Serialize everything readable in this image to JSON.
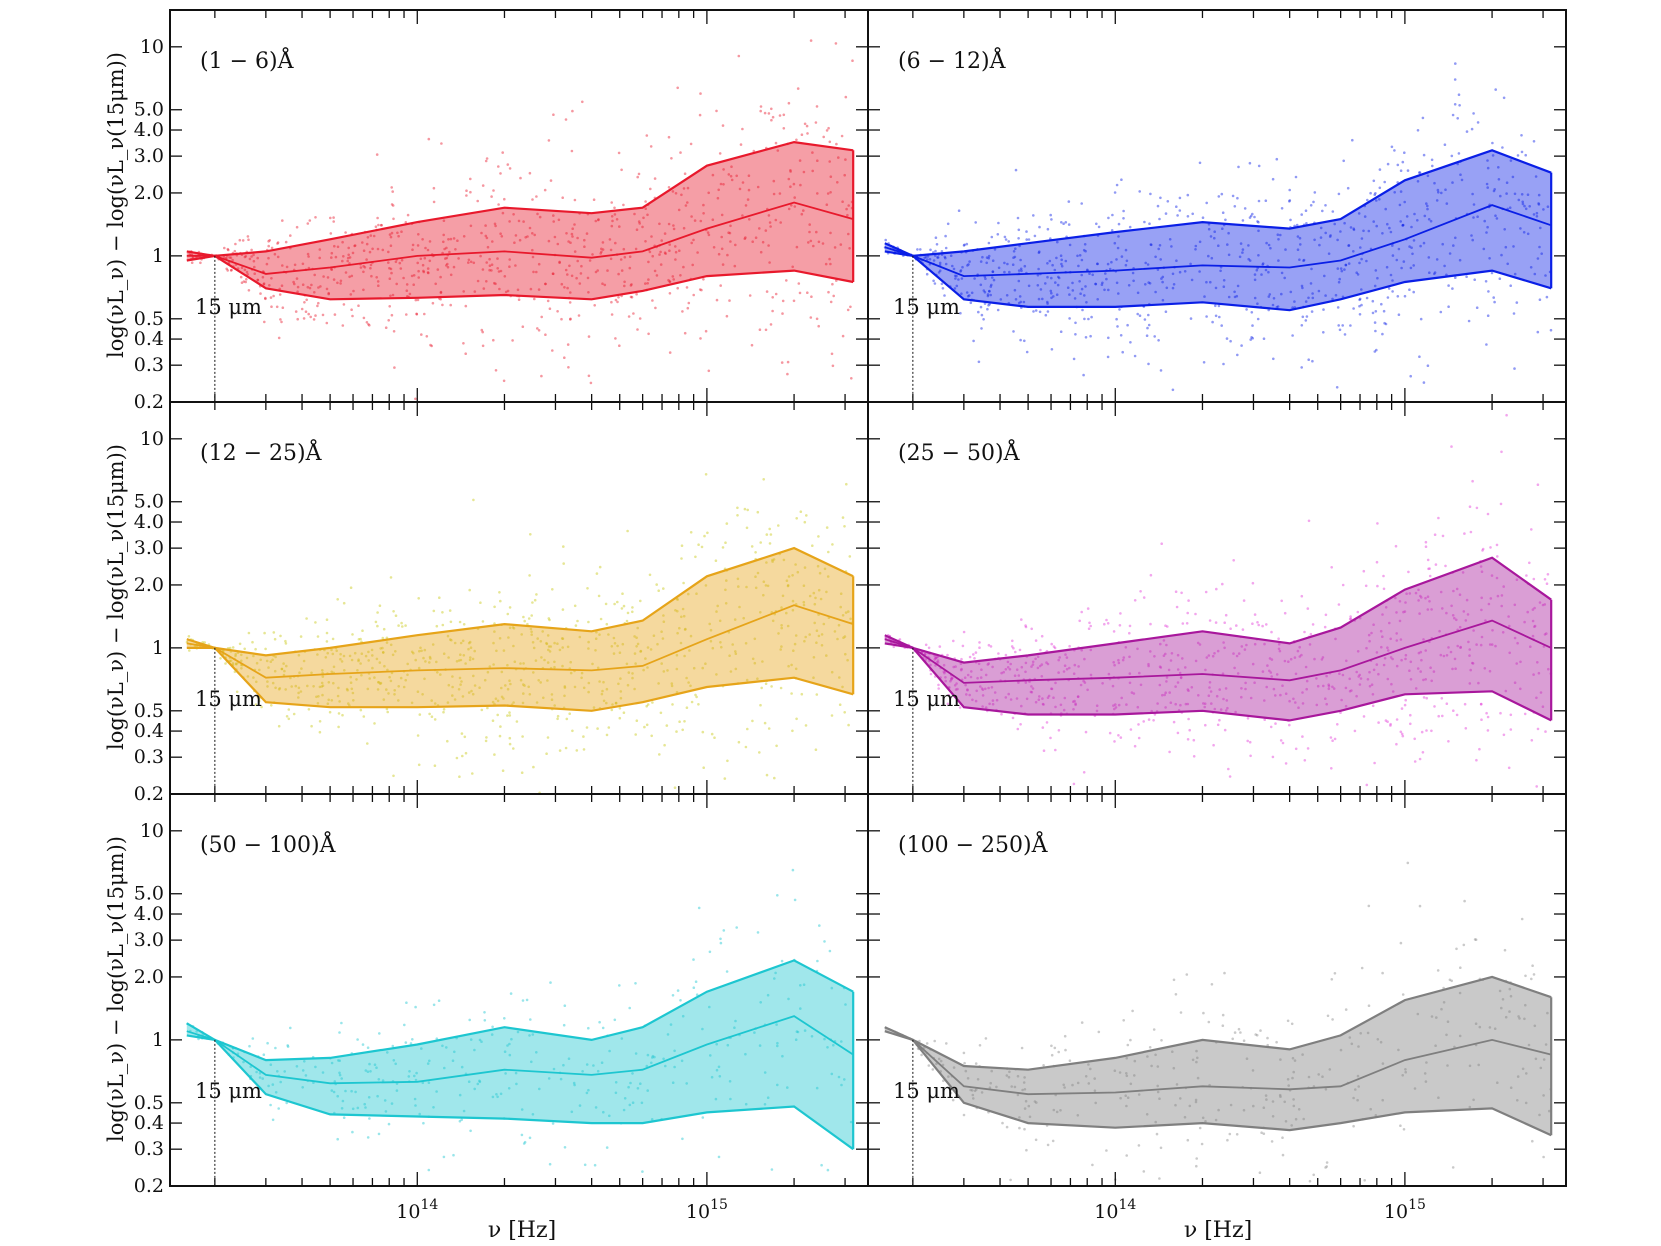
{
  "figure": {
    "ylabel": "log(νL_ν) − log(νL_ν(15μm))",
    "xlabel": "ν [Hz]",
    "reference_label": "15 μm",
    "x_tick_labels": [
      "10^14",
      "10^15"
    ],
    "y_tick_labels": [
      "10",
      "5.0",
      "4.0",
      "3.0",
      "2.0",
      "1",
      "0.5",
      "0.4",
      "0.3",
      "0.2"
    ]
  },
  "chart_data": [
    {
      "type": "area",
      "title": "(1 − 6)Å",
      "color": "#e8192c",
      "xscale": "log",
      "yscale": "log",
      "xlim": [
        14000000000000.0,
        3600000000000000.0
      ],
      "ylim": [
        0.2,
        15
      ],
      "reference_x": 20000000000000.0,
      "x": [
        16000000000000.0,
        20000000000000.0,
        30000000000000.0,
        50000000000000.0,
        100000000000000.0,
        200000000000000.0,
        400000000000000.0,
        600000000000000.0,
        1000000000000000.0,
        2000000000000000.0,
        3200000000000000.0
      ],
      "series": [
        {
          "name": "upper",
          "values": [
            1.05,
            1.0,
            1.05,
            1.2,
            1.45,
            1.7,
            1.6,
            1.7,
            2.7,
            3.5,
            3.2
          ]
        },
        {
          "name": "median",
          "values": [
            1.0,
            1.0,
            0.82,
            0.88,
            1.0,
            1.05,
            0.98,
            1.05,
            1.35,
            1.8,
            1.5
          ]
        },
        {
          "name": "lower",
          "values": [
            0.95,
            1.0,
            0.7,
            0.62,
            0.63,
            0.65,
            0.62,
            0.68,
            0.8,
            0.85,
            0.75
          ]
        }
      ]
    },
    {
      "type": "area",
      "title": "(6 − 12)Å",
      "color": "#0a1fe6",
      "xscale": "log",
      "yscale": "log",
      "xlim": [
        14000000000000.0,
        3600000000000000.0
      ],
      "ylim": [
        0.2,
        15
      ],
      "reference_x": 20000000000000.0,
      "x": [
        16000000000000.0,
        20000000000000.0,
        30000000000000.0,
        50000000000000.0,
        100000000000000.0,
        200000000000000.0,
        400000000000000.0,
        600000000000000.0,
        1000000000000000.0,
        2000000000000000.0,
        3200000000000000.0
      ],
      "series": [
        {
          "name": "upper",
          "values": [
            1.15,
            1.0,
            1.05,
            1.15,
            1.3,
            1.45,
            1.35,
            1.5,
            2.3,
            3.2,
            2.5
          ]
        },
        {
          "name": "median",
          "values": [
            1.1,
            1.0,
            0.8,
            0.82,
            0.85,
            0.9,
            0.88,
            0.95,
            1.2,
            1.75,
            1.4
          ]
        },
        {
          "name": "lower",
          "values": [
            1.05,
            1.0,
            0.62,
            0.57,
            0.57,
            0.6,
            0.55,
            0.62,
            0.75,
            0.85,
            0.7
          ]
        }
      ]
    },
    {
      "type": "area",
      "title": "(12 − 25)Å",
      "color": "#e6a419",
      "point_color": "#c8c815",
      "xscale": "log",
      "yscale": "log",
      "xlim": [
        14000000000000.0,
        3600000000000000.0
      ],
      "ylim": [
        0.2,
        15
      ],
      "reference_x": 20000000000000.0,
      "x": [
        16000000000000.0,
        20000000000000.0,
        30000000000000.0,
        50000000000000.0,
        100000000000000.0,
        200000000000000.0,
        400000000000000.0,
        600000000000000.0,
        1000000000000000.0,
        2000000000000000.0,
        3200000000000000.0
      ],
      "series": [
        {
          "name": "upper",
          "values": [
            1.1,
            1.0,
            0.92,
            1.0,
            1.15,
            1.3,
            1.2,
            1.35,
            2.2,
            3.0,
            2.2
          ]
        },
        {
          "name": "median",
          "values": [
            1.05,
            1.0,
            0.72,
            0.75,
            0.78,
            0.8,
            0.78,
            0.82,
            1.1,
            1.6,
            1.3
          ]
        },
        {
          "name": "lower",
          "values": [
            1.0,
            1.0,
            0.55,
            0.52,
            0.52,
            0.53,
            0.5,
            0.55,
            0.65,
            0.72,
            0.6
          ]
        }
      ]
    },
    {
      "type": "area",
      "title": "(25 − 50)Å",
      "color": "#a8179c",
      "point_color": "#e23ad8",
      "xscale": "log",
      "yscale": "log",
      "xlim": [
        14000000000000.0,
        3600000000000000.0
      ],
      "ylim": [
        0.2,
        15
      ],
      "reference_x": 20000000000000.0,
      "x": [
        16000000000000.0,
        20000000000000.0,
        30000000000000.0,
        50000000000000.0,
        100000000000000.0,
        200000000000000.0,
        400000000000000.0,
        600000000000000.0,
        1000000000000000.0,
        2000000000000000.0,
        3200000000000000.0
      ],
      "series": [
        {
          "name": "upper",
          "values": [
            1.15,
            1.0,
            0.85,
            0.92,
            1.05,
            1.2,
            1.05,
            1.25,
            1.9,
            2.7,
            1.7
          ]
        },
        {
          "name": "median",
          "values": [
            1.1,
            1.0,
            0.68,
            0.7,
            0.72,
            0.75,
            0.7,
            0.78,
            1.0,
            1.35,
            1.0
          ]
        },
        {
          "name": "lower",
          "values": [
            1.05,
            1.0,
            0.52,
            0.48,
            0.48,
            0.5,
            0.45,
            0.5,
            0.6,
            0.62,
            0.45
          ]
        }
      ]
    },
    {
      "type": "area",
      "title": "(50 − 100)Å",
      "color": "#1dc6d0",
      "xscale": "log",
      "yscale": "log",
      "xlim": [
        14000000000000.0,
        3600000000000000.0
      ],
      "ylim": [
        0.2,
        15
      ],
      "reference_x": 20000000000000.0,
      "x": [
        16000000000000.0,
        20000000000000.0,
        30000000000000.0,
        50000000000000.0,
        100000000000000.0,
        200000000000000.0,
        400000000000000.0,
        600000000000000.0,
        1000000000000000.0,
        2000000000000000.0,
        3200000000000000.0
      ],
      "series": [
        {
          "name": "upper",
          "values": [
            1.2,
            1.0,
            0.8,
            0.82,
            0.95,
            1.15,
            1.0,
            1.15,
            1.7,
            2.4,
            1.7
          ]
        },
        {
          "name": "median",
          "values": [
            1.1,
            1.0,
            0.68,
            0.62,
            0.63,
            0.72,
            0.68,
            0.72,
            0.95,
            1.3,
            0.85
          ]
        },
        {
          "name": "lower",
          "values": [
            1.05,
            1.0,
            0.55,
            0.44,
            0.43,
            0.42,
            0.4,
            0.4,
            0.45,
            0.48,
            0.3
          ]
        }
      ]
    },
    {
      "type": "area",
      "title": "(100 − 250)Å",
      "color": "#7f7f7f",
      "point_color": "#8a8a8a",
      "xscale": "log",
      "yscale": "log",
      "xlim": [
        14000000000000.0,
        3600000000000000.0
      ],
      "ylim": [
        0.2,
        15
      ],
      "reference_x": 20000000000000.0,
      "x": [
        16000000000000.0,
        20000000000000.0,
        30000000000000.0,
        50000000000000.0,
        100000000000000.0,
        200000000000000.0,
        400000000000000.0,
        600000000000000.0,
        1000000000000000.0,
        2000000000000000.0,
        3200000000000000.0
      ],
      "series": [
        {
          "name": "upper",
          "values": [
            1.15,
            1.0,
            0.75,
            0.72,
            0.82,
            1.0,
            0.9,
            1.05,
            1.55,
            2.0,
            1.6
          ]
        },
        {
          "name": "median",
          "values": [
            1.15,
            1.0,
            0.6,
            0.55,
            0.56,
            0.6,
            0.58,
            0.6,
            0.8,
            1.0,
            0.85
          ]
        },
        {
          "name": "lower",
          "values": [
            1.1,
            1.0,
            0.5,
            0.4,
            0.38,
            0.4,
            0.37,
            0.4,
            0.45,
            0.47,
            0.35
          ]
        }
      ]
    }
  ]
}
